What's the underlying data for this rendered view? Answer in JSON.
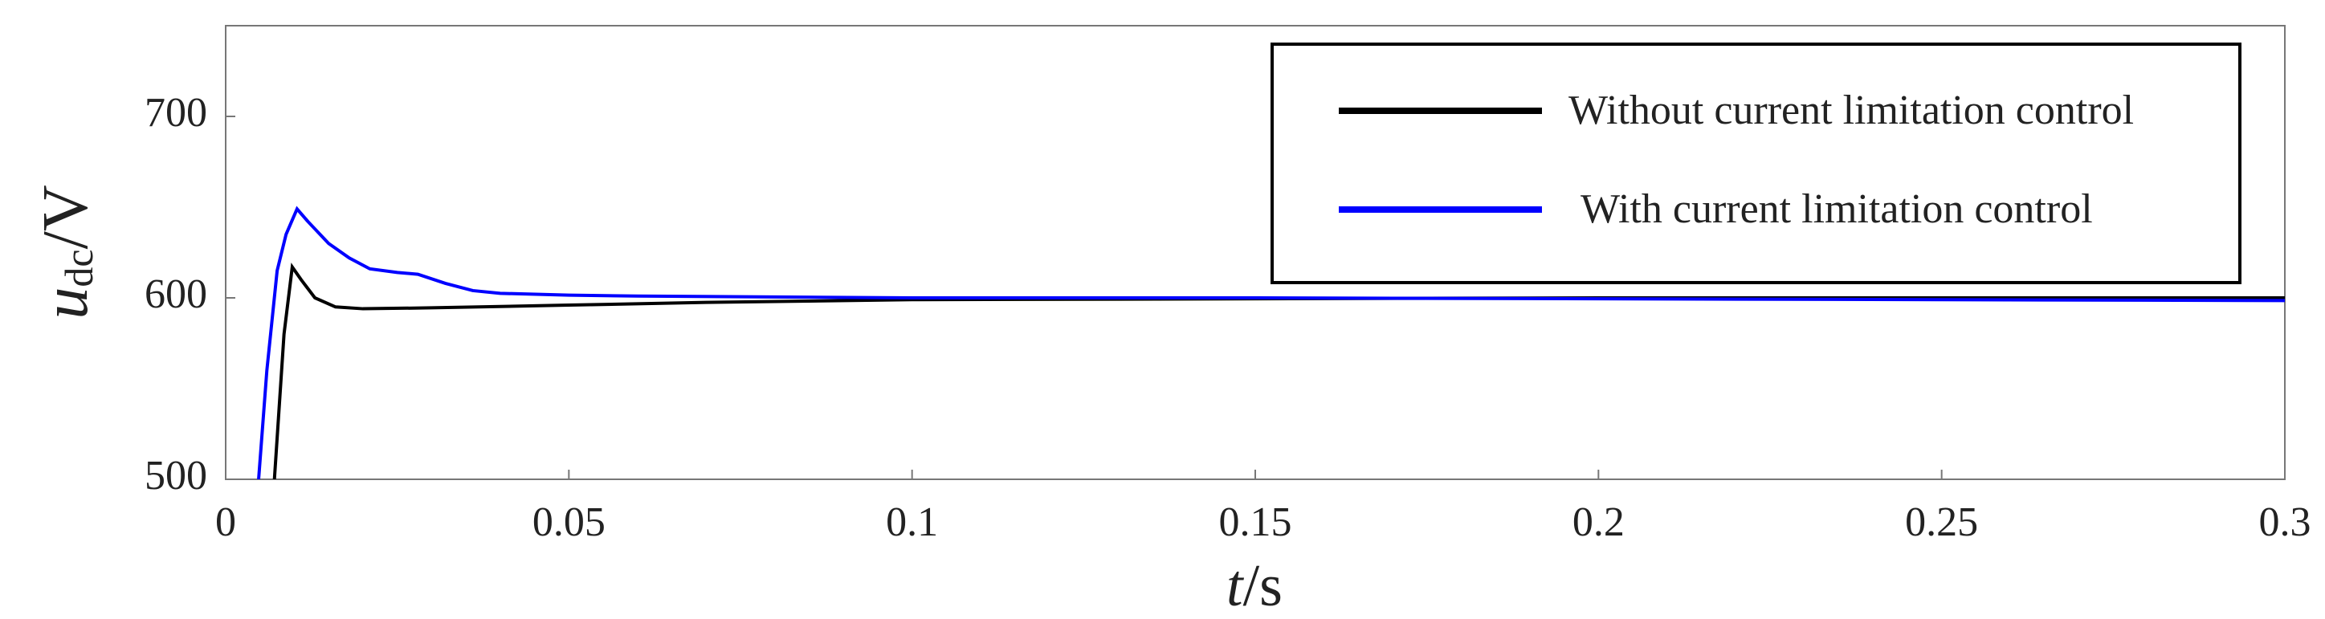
{
  "chart_data": {
    "type": "line",
    "ylabel": [
      "u",
      "dc",
      "/V"
    ],
    "xlabel": [
      "t",
      "/s"
    ],
    "xlim": [
      0,
      0.3
    ],
    "xticks": [
      0,
      0.05,
      0.1,
      0.15,
      0.2,
      0.25,
      0.3
    ],
    "ylim": [
      500,
      750
    ],
    "yticks": [
      500,
      600,
      700
    ],
    "grid": false,
    "legend": "upper right",
    "series": [
      {
        "name": "Without current limitation control",
        "color": "#000000",
        "x": [
          0.0071,
          0.0085,
          0.0097,
          0.011,
          0.013,
          0.016,
          0.02,
          0.03,
          0.05,
          0.07,
          0.1,
          0.15,
          0.2,
          0.25,
          0.3
        ],
        "values": [
          500,
          580,
          617,
          610,
          600,
          595,
          594,
          594.5,
          596,
          597.5,
          599,
          599.5,
          600,
          600,
          600
        ]
      },
      {
        "name": "With current limitation control",
        "color": "#0000ff",
        "x": [
          0.0048,
          0.006,
          0.0075,
          0.0088,
          0.0104,
          0.012,
          0.015,
          0.018,
          0.021,
          0.025,
          0.028,
          0.032,
          0.036,
          0.04,
          0.05,
          0.06,
          0.08,
          0.1,
          0.15,
          0.2,
          0.25,
          0.3
        ],
        "values": [
          500,
          560,
          615,
          635,
          649,
          642,
          630,
          622,
          616,
          614,
          613,
          608,
          604,
          602.5,
          601.5,
          601,
          600.5,
          600,
          600,
          599.5,
          599,
          598.5
        ]
      }
    ]
  }
}
